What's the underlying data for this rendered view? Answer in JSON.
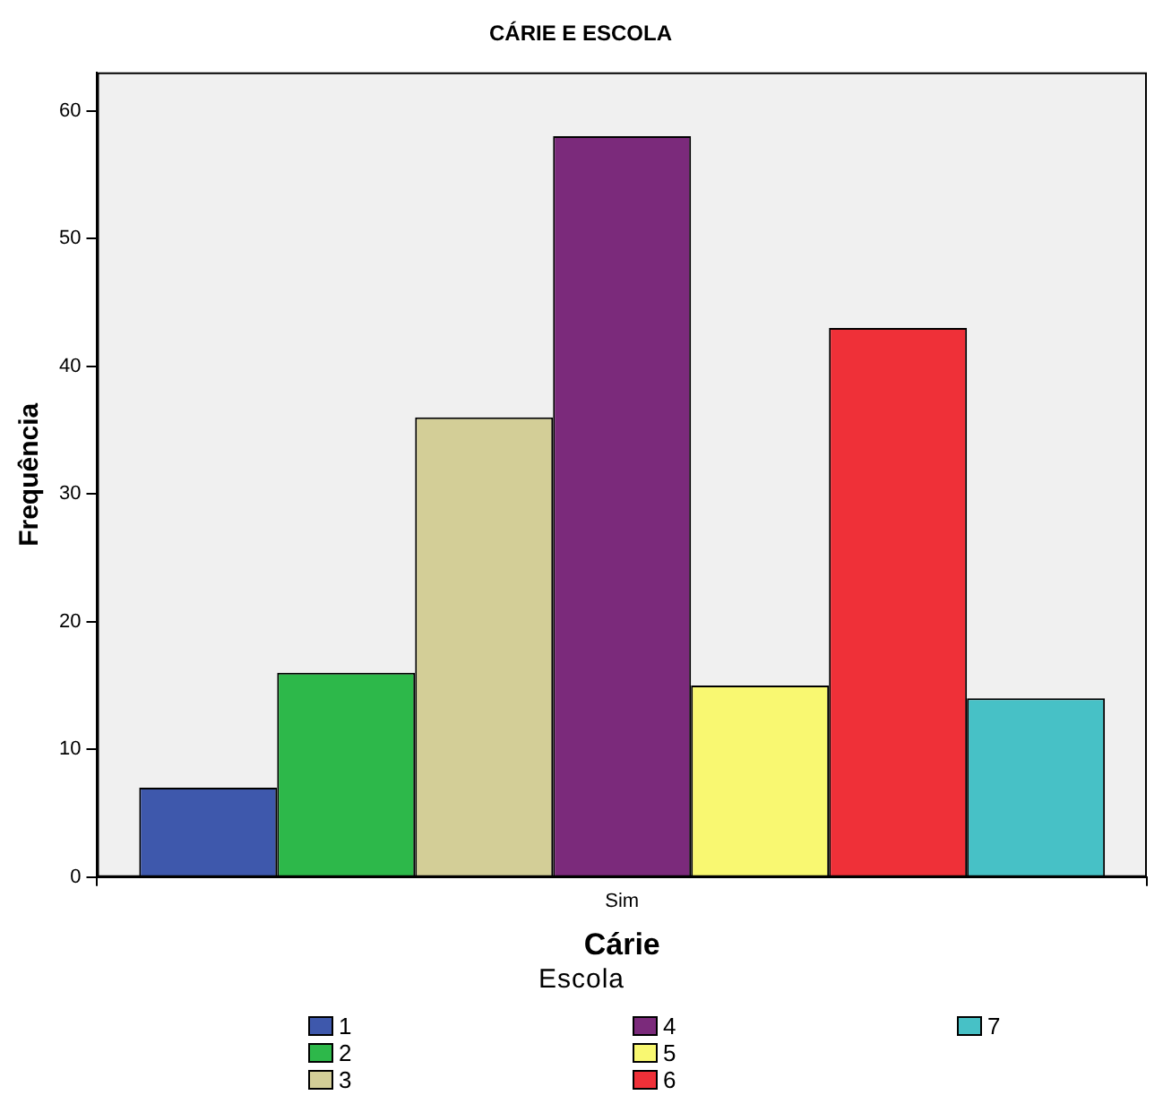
{
  "chart_data": {
    "type": "bar",
    "title": "CÁRIE E ESCOLA",
    "xlabel": "Cárie",
    "ylabel": "Frequência",
    "legend_title": "Escola",
    "categories": [
      "Sim"
    ],
    "series": [
      {
        "name": "1",
        "color": "#3e58ac",
        "values": [
          7
        ]
      },
      {
        "name": "2",
        "color": "#2db84a",
        "values": [
          16
        ]
      },
      {
        "name": "3",
        "color": "#d3ce97",
        "values": [
          36
        ]
      },
      {
        "name": "4",
        "color": "#7b2a7b",
        "values": [
          58
        ]
      },
      {
        "name": "5",
        "color": "#f9f871",
        "values": [
          15
        ]
      },
      {
        "name": "6",
        "color": "#ef3038",
        "values": [
          43
        ]
      },
      {
        "name": "7",
        "color": "#47c1c6",
        "values": [
          14
        ]
      }
    ],
    "ylim": [
      0,
      63
    ],
    "yticks": [
      0,
      10,
      20,
      30,
      40,
      50,
      60
    ],
    "grid": false,
    "legend": "bottom"
  }
}
